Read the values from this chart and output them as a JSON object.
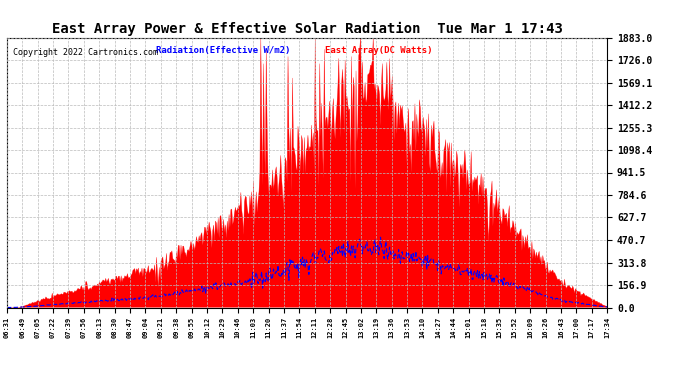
{
  "title": "East Array Power & Effective Solar Radiation  Tue Mar 1 17:43",
  "copyright": "Copyright 2022 Cartronics.com",
  "legend_radiation": "Radiation(Effective W/m2)",
  "legend_array": "East Array(DC Watts)",
  "ymax": 1883.0,
  "yticks": [
    0.0,
    156.9,
    313.8,
    470.7,
    627.7,
    784.6,
    941.5,
    1098.4,
    1255.3,
    1412.2,
    1569.1,
    1726.0,
    1883.0
  ],
  "ytick_labels": [
    "0.0",
    "156.9",
    "313.8",
    "470.7",
    "627.7",
    "784.6",
    "941.5",
    "1098.4",
    "1255.3",
    "1412.2",
    "1569.1",
    "1726.0",
    "1883.0"
  ],
  "x_labels": [
    "06:31",
    "06:49",
    "07:05",
    "07:22",
    "07:39",
    "07:56",
    "08:13",
    "08:30",
    "08:47",
    "09:04",
    "09:21",
    "09:38",
    "09:55",
    "10:12",
    "10:29",
    "10:46",
    "11:03",
    "11:20",
    "11:37",
    "11:54",
    "12:11",
    "12:28",
    "12:45",
    "13:02",
    "13:19",
    "13:36",
    "13:53",
    "14:10",
    "14:27",
    "14:44",
    "15:01",
    "15:18",
    "15:35",
    "15:52",
    "16:09",
    "16:26",
    "16:43",
    "17:00",
    "17:17",
    "17:34"
  ],
  "radiation_color": "#ff0000",
  "radiation_fill_color": "#ff0000",
  "array_color": "#0000ff",
  "array_linestyle": "--",
  "background_color": "#ffffff",
  "grid_color": "#aaaaaa",
  "grid_linestyle": "--",
  "title_color": "#000000",
  "title_fontsize": 10,
  "legend_radiation_color": "#0000ff",
  "legend_array_color": "#ff0000",
  "copyright_color": "#000000",
  "copyright_fontsize": 6.0
}
